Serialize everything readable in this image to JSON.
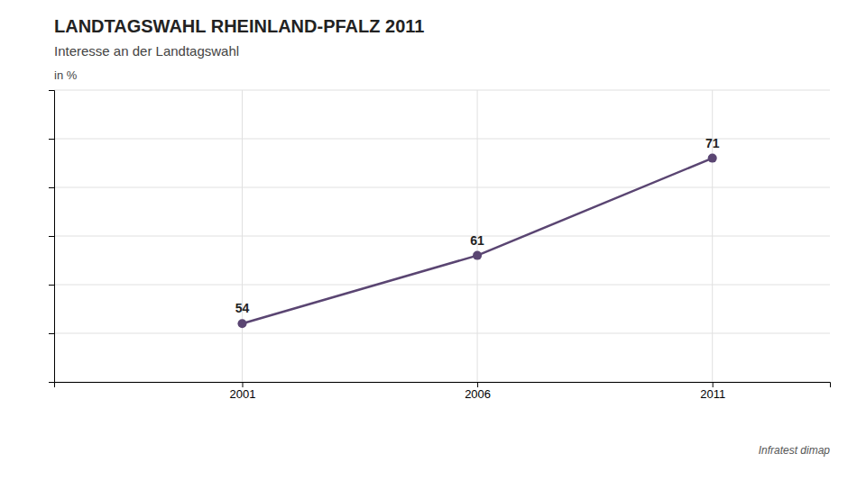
{
  "chart_data": {
    "type": "line",
    "title": "LANDTAGSWAHL RHEINLAND-PFALZ 2011",
    "subtitle": "Interesse an der Landtagswahl",
    "ylabel": "in %",
    "annotations": [
      "Infratest dimap"
    ],
    "x": [
      2001,
      2006,
      2011
    ],
    "values": [
      54,
      61,
      71
    ],
    "color": "#5a4572",
    "marker": "circle",
    "xlim": [
      1997,
      2013.5
    ],
    "xticks": [
      2001,
      2006,
      2011
    ],
    "ylim": [
      48,
      78
    ],
    "yticks": [
      48,
      53,
      58,
      63,
      68,
      73,
      78
    ],
    "grid": true,
    "tick_labels": "x",
    "data_labels": true
  }
}
